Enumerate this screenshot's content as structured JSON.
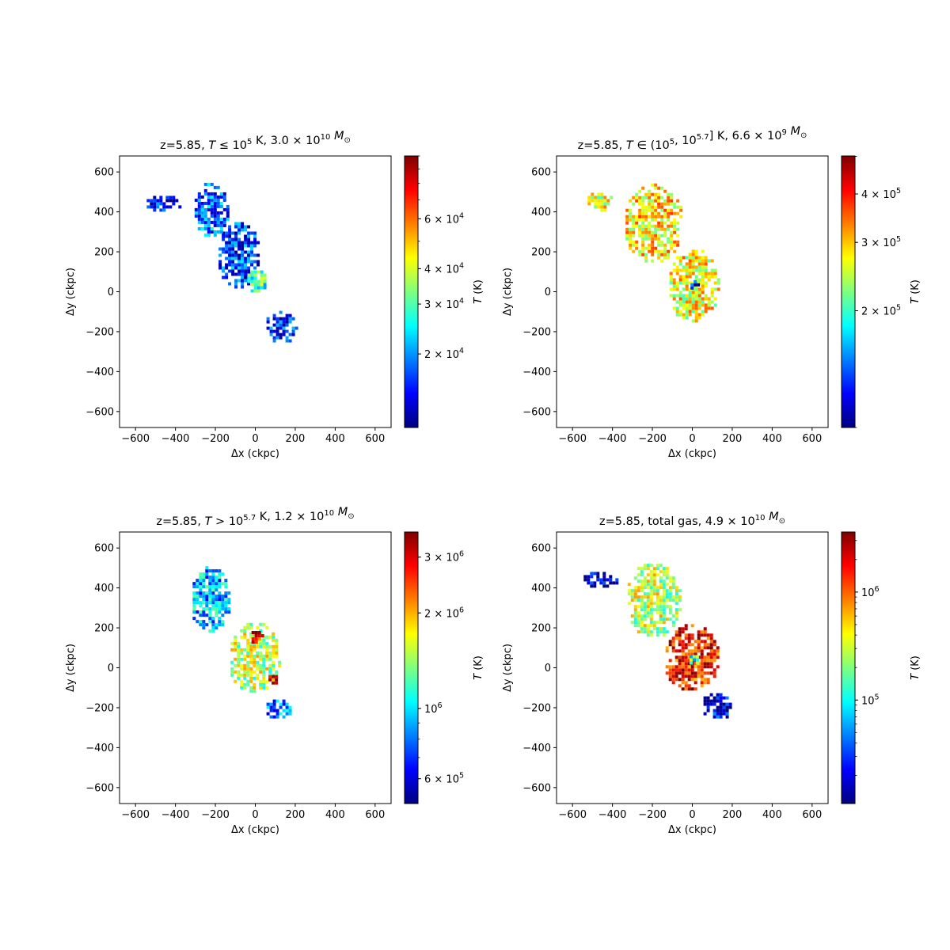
{
  "figure": {
    "colormap": "jet",
    "colormap_stops": [
      "#00007f",
      "#0000ff",
      "#007fff",
      "#00ffff",
      "#7fff7f",
      "#ffff00",
      "#ff7f00",
      "#ff0000",
      "#7f0000"
    ]
  },
  "chart_data": [
    {
      "type": "heatmap",
      "title_parts": [
        "z=5.85, ",
        "T",
        " ≤ 10",
        "5",
        " K, 3.0 × 10",
        "10",
        " M",
        "⊙"
      ],
      "xlabel": "Δx (ckpc)",
      "ylabel": "Δy (ckpc)",
      "xlim": [
        -680,
        680
      ],
      "ylim": [
        -680,
        680
      ],
      "xticks": [
        -600,
        -400,
        -200,
        0,
        200,
        400,
        600
      ],
      "yticks": [
        -600,
        -400,
        -200,
        0,
        200,
        400,
        600
      ],
      "colorbar": {
        "label": "T (K)",
        "scale": "log",
        "range": [
          11000,
          100000
        ],
        "ticks": [
          {
            "value": 20000,
            "base": "2 × 10",
            "exp": "4"
          },
          {
            "value": 30000,
            "base": "3 × 10",
            "exp": "4"
          },
          {
            "value": 40000,
            "base": "4 × 10",
            "exp": "4"
          },
          {
            "value": 60000,
            "base": "6 × 10",
            "exp": "4"
          }
        ]
      },
      "gas_components": [
        {
          "cx": -470,
          "cy": 430,
          "rx": 90,
          "ry": 45,
          "value": 0.13
        },
        {
          "cx": -90,
          "cy": 170,
          "rx": 110,
          "ry": 170,
          "value": 0.18
        },
        {
          "cx": 0,
          "cy": 40,
          "rx": 55,
          "ry": 60,
          "value": 0.45
        },
        {
          "cx": 120,
          "cy": -190,
          "rx": 80,
          "ry": 80,
          "value": 0.15
        },
        {
          "cx": -230,
          "cy": 400,
          "rx": 90,
          "ry": 140,
          "value": 0.22
        }
      ]
    },
    {
      "type": "heatmap",
      "title_parts": [
        "z=5.85, ",
        "T",
        " ∈ (10",
        "5",
        ", 10",
        "5.7",
        "] K, 6.6 × 10",
        "9",
        " M",
        "⊙"
      ],
      "xlabel": "Δx (ckpc)",
      "ylabel": "Δy (ckpc)",
      "xlim": [
        -680,
        680
      ],
      "ylim": [
        -680,
        680
      ],
      "xticks": [
        -600,
        -400,
        -200,
        0,
        200,
        400,
        600
      ],
      "yticks": [
        -600,
        -400,
        -200,
        0,
        200,
        400,
        600
      ],
      "colorbar": {
        "label": "T (K)",
        "scale": "log",
        "range": [
          100000,
          501187
        ],
        "ticks": [
          {
            "value": 200000,
            "base": "2 × 10",
            "exp": "5"
          },
          {
            "value": 300000,
            "base": "3 × 10",
            "exp": "5"
          },
          {
            "value": 400000,
            "base": "4 × 10",
            "exp": "5"
          }
        ]
      },
      "gas_components": [
        {
          "cx": -470,
          "cy": 440,
          "rx": 70,
          "ry": 55,
          "value": 0.6
        },
        {
          "cx": -200,
          "cy": 330,
          "rx": 150,
          "ry": 200,
          "value": 0.65
        },
        {
          "cx": 0,
          "cy": 20,
          "rx": 130,
          "ry": 190,
          "value": 0.62
        },
        {
          "cx": 0,
          "cy": 20,
          "rx": 25,
          "ry": 25,
          "value": 0.1
        }
      ]
    },
    {
      "type": "heatmap",
      "title_parts": [
        "z=5.85, ",
        "T",
        " > 10",
        "5.7",
        " K, 1.2 × 10",
        "10",
        " M",
        "⊙"
      ],
      "xlabel": "Δx (ckpc)",
      "ylabel": "Δy (ckpc)",
      "xlim": [
        -680,
        680
      ],
      "ylim": [
        -680,
        680
      ],
      "xticks": [
        -600,
        -400,
        -200,
        0,
        200,
        400,
        600
      ],
      "yticks": [
        -600,
        -400,
        -200,
        0,
        200,
        400,
        600
      ],
      "colorbar": {
        "label": "T (K)",
        "scale": "log",
        "range": [
          501187,
          3600000
        ],
        "ticks": [
          {
            "value": 600000,
            "base": "6 × 10",
            "exp": "5"
          },
          {
            "value": 1000000,
            "base": "10",
            "exp": "6"
          },
          {
            "value": 2000000,
            "base": "2 × 10",
            "exp": "6"
          },
          {
            "value": 3000000,
            "base": "3 × 10",
            "exp": "6"
          }
        ]
      },
      "gas_components": [
        {
          "cx": -10,
          "cy": 40,
          "rx": 130,
          "ry": 180,
          "value": 0.55
        },
        {
          "cx": 0,
          "cy": 140,
          "rx": 35,
          "ry": 35,
          "value": 0.9
        },
        {
          "cx": 80,
          "cy": -70,
          "rx": 30,
          "ry": 30,
          "value": 0.85
        },
        {
          "cx": -230,
          "cy": 330,
          "rx": 100,
          "ry": 170,
          "value": 0.3
        },
        {
          "cx": 110,
          "cy": -220,
          "rx": 70,
          "ry": 50,
          "value": 0.25
        }
      ]
    },
    {
      "type": "heatmap",
      "title_parts": [
        "z=5.85, total gas, 4.9 × 10",
        "10",
        " M",
        "⊙"
      ],
      "xlabel": "Δx (ckpc)",
      "ylabel": "Δy (ckpc)",
      "xlim": [
        -680,
        680
      ],
      "ylim": [
        -680,
        680
      ],
      "xticks": [
        -600,
        -400,
        -200,
        0,
        200,
        400,
        600
      ],
      "yticks": [
        -600,
        -400,
        -200,
        0,
        200,
        400,
        600
      ],
      "colorbar": {
        "label": "T (K)",
        "scale": "log",
        "range": [
          11000,
          3600000
        ],
        "ticks": [
          {
            "value": 100000,
            "base": "10",
            "exp": "5"
          },
          {
            "value": 1000000,
            "base": "10",
            "exp": "6"
          }
        ]
      },
      "gas_components": [
        {
          "cx": -470,
          "cy": 430,
          "rx": 90,
          "ry": 45,
          "value": 0.05
        },
        {
          "cx": -200,
          "cy": 330,
          "rx": 140,
          "ry": 190,
          "value": 0.55
        },
        {
          "cx": -10,
          "cy": 40,
          "rx": 140,
          "ry": 170,
          "value": 0.85
        },
        {
          "cx": 0,
          "cy": 30,
          "rx": 30,
          "ry": 30,
          "value": 0.45
        },
        {
          "cx": 120,
          "cy": -200,
          "rx": 80,
          "ry": 70,
          "value": 0.1
        }
      ]
    }
  ]
}
